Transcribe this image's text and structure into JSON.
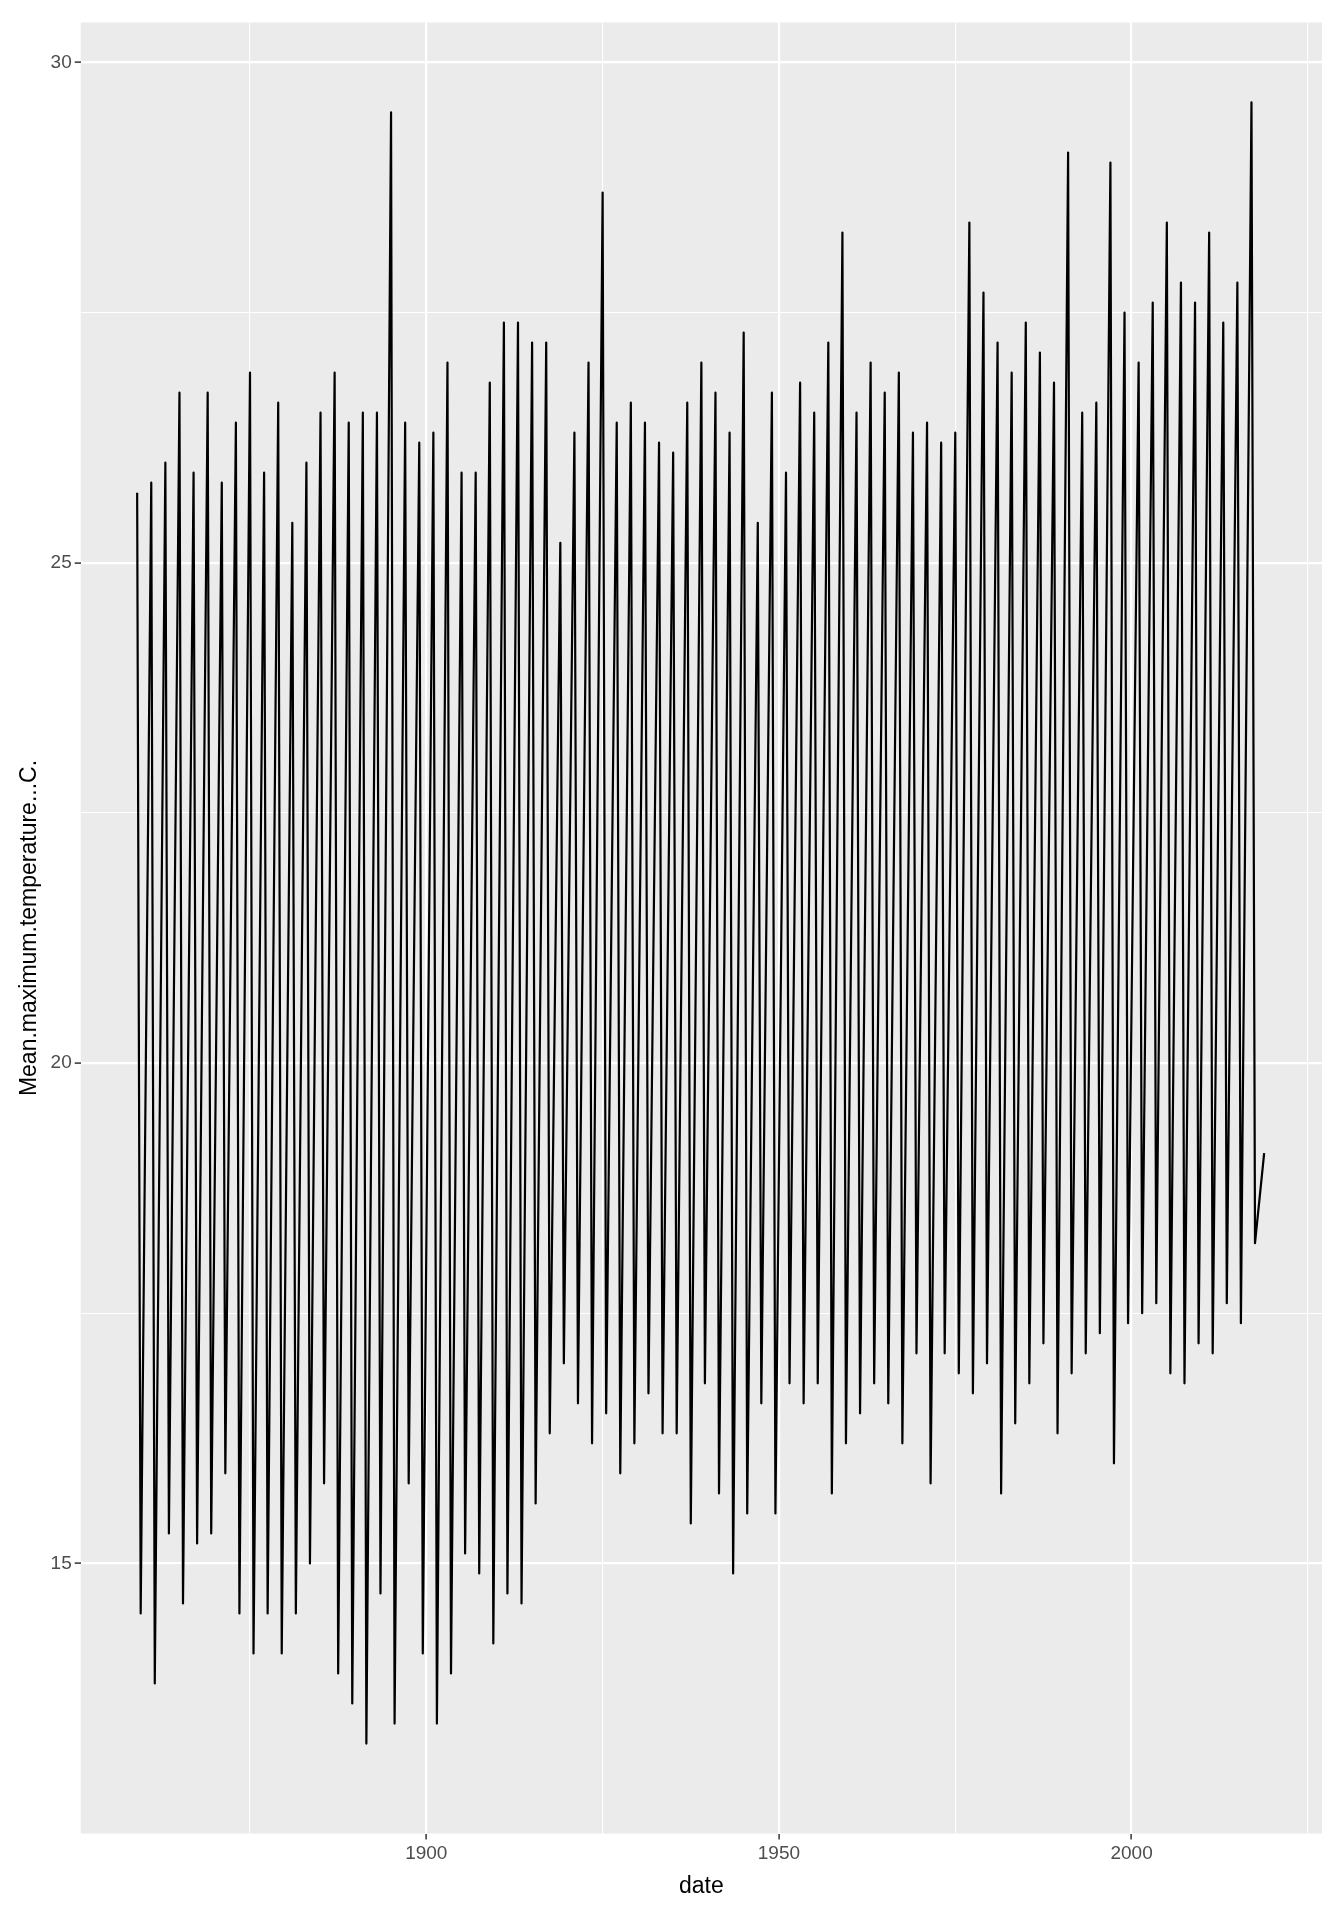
{
  "chart_data": {
    "type": "line",
    "xlabel": "date",
    "ylabel": "Mean.maximum.temperature...C.",
    "x": [
      1859,
      1859.5,
      1861,
      1861.5,
      1863,
      1863.5,
      1865,
      1865.5,
      1867,
      1867.5,
      1869,
      1869.5,
      1871,
      1871.5,
      1873,
      1873.5,
      1875,
      1875.5,
      1877,
      1877.5,
      1879,
      1879.5,
      1881,
      1881.5,
      1883,
      1883.5,
      1885,
      1885.5,
      1887,
      1887.5,
      1889,
      1889.5,
      1891,
      1891.5,
      1893,
      1893.5,
      1895,
      1895.5,
      1897,
      1897.5,
      1899,
      1899.5,
      1901,
      1901.5,
      1903,
      1903.5,
      1905,
      1905.5,
      1907,
      1907.5,
      1909,
      1909.5,
      1911,
      1911.5,
      1913,
      1913.5,
      1915,
      1915.5,
      1917,
      1917.5,
      1919,
      1919.5,
      1921,
      1921.5,
      1923,
      1923.5,
      1925,
      1925.5,
      1927,
      1927.5,
      1929,
      1929.5,
      1931,
      1931.5,
      1933,
      1933.5,
      1935,
      1935.5,
      1937,
      1937.5,
      1939,
      1939.5,
      1941,
      1941.5,
      1943,
      1943.5,
      1945,
      1945.5,
      1947,
      1947.5,
      1949,
      1949.5,
      1951,
      1951.5,
      1953,
      1953.5,
      1955,
      1955.5,
      1957,
      1957.5,
      1959,
      1959.5,
      1961,
      1961.5,
      1963,
      1963.5,
      1965,
      1965.5,
      1967,
      1967.5,
      1969,
      1969.5,
      1971,
      1971.5,
      1973,
      1973.5,
      1975,
      1975.5,
      1977,
      1977.5,
      1979,
      1979.5,
      1981,
      1981.5,
      1983,
      1983.5,
      1985,
      1985.5,
      1987,
      1987.5,
      1989,
      1989.5,
      1991,
      1991.5,
      1993,
      1993.5,
      1995,
      1995.5,
      1997,
      1997.5,
      1999,
      1999.5,
      2001,
      2001.5,
      2003,
      2003.5,
      2005,
      2005.5,
      2007,
      2007.5,
      2009,
      2009.5,
      2011,
      2011.5,
      2013,
      2013.5,
      2015,
      2015.5,
      2017,
      2017.5,
      2018.8
    ],
    "series": [
      {
        "color": "#000000",
        "values": [
          25.7,
          14.5,
          25.8,
          13.8,
          26.0,
          15.3,
          26.7,
          14.6,
          25.9,
          15.2,
          26.7,
          15.3,
          25.8,
          15.9,
          26.4,
          14.5,
          26.9,
          14.1,
          25.9,
          14.5,
          26.6,
          14.1,
          25.4,
          14.5,
          26.0,
          15.0,
          26.5,
          15.8,
          26.9,
          13.9,
          26.4,
          13.6,
          26.5,
          13.2,
          26.5,
          14.7,
          29.5,
          13.4,
          26.4,
          15.8,
          26.2,
          14.1,
          26.3,
          13.4,
          27.0,
          13.9,
          25.9,
          15.1,
          25.9,
          14.9,
          26.8,
          14.2,
          27.4,
          14.7,
          27.4,
          14.6,
          27.2,
          15.6,
          27.2,
          16.3,
          25.2,
          17.0,
          26.3,
          16.6,
          27.0,
          16.2,
          28.7,
          16.5,
          26.4,
          15.9,
          26.6,
          16.2,
          26.4,
          16.7,
          26.2,
          16.3,
          26.1,
          16.3,
          26.6,
          15.4,
          27.0,
          16.8,
          26.7,
          15.7,
          26.3,
          14.9,
          27.3,
          15.5,
          25.4,
          16.6,
          26.7,
          15.5,
          25.9,
          16.8,
          26.8,
          16.6,
          26.5,
          16.8,
          27.2,
          15.7,
          28.3,
          16.2,
          26.5,
          16.5,
          27.0,
          16.8,
          26.7,
          16.6,
          26.9,
          16.2,
          26.3,
          17.1,
          26.4,
          15.8,
          26.2,
          17.1,
          26.3,
          16.9,
          28.4,
          16.7,
          27.7,
          17.0,
          27.2,
          15.7,
          26.9,
          16.4,
          27.4,
          16.8,
          27.1,
          17.2,
          26.8,
          16.3,
          29.1,
          16.9,
          26.5,
          17.1,
          26.6,
          17.3,
          29.0,
          16.0,
          27.5,
          17.4,
          27.0,
          17.5,
          27.6,
          17.6,
          28.4,
          16.9,
          27.8,
          16.8,
          27.6,
          17.2,
          28.3,
          17.1,
          27.4,
          17.6,
          27.8,
          17.4,
          29.6,
          18.2,
          19.1
        ]
      }
    ],
    "xlim": [
      1851,
      2027
    ],
    "xticks": [
      {
        "value": 1875,
        "label": null
      },
      1900,
      {
        "value": 1925,
        "label": null
      },
      1950,
      {
        "value": 1975,
        "label": null
      },
      2000,
      {
        "value": 2025,
        "label": null
      }
    ],
    "ylim": [
      12.3,
      30.4
    ],
    "yticks": [
      15,
      {
        "value": 17.5,
        "label": null
      },
      20,
      {
        "value": 22.5,
        "label": null
      },
      25,
      {
        "value": 27.5,
        "label": null
      },
      30
    ],
    "grid": true,
    "legend": false
  }
}
